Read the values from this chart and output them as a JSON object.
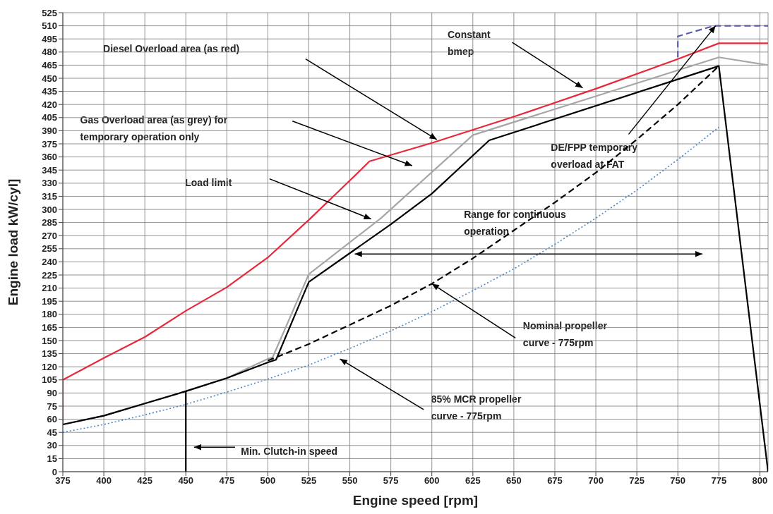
{
  "chart_data": {
    "type": "line",
    "xlabel": "Engine speed [rpm]",
    "ylabel": "Engine load kW/cyl]",
    "xlim": [
      375,
      805
    ],
    "ylim": [
      0,
      525
    ],
    "xticks": [
      375,
      400,
      425,
      450,
      475,
      500,
      525,
      550,
      575,
      600,
      625,
      650,
      675,
      700,
      725,
      750,
      775,
      800
    ],
    "yticks": [
      0,
      15,
      30,
      45,
      60,
      75,
      90,
      105,
      120,
      135,
      150,
      165,
      180,
      195,
      210,
      225,
      240,
      255,
      270,
      285,
      300,
      315,
      330,
      345,
      360,
      375,
      390,
      405,
      420,
      435,
      450,
      465,
      480,
      495,
      510,
      525
    ],
    "grid": true,
    "legend": false,
    "marker": "none",
    "series": [
      {
        "color": "#e8283a",
        "line_style": "solid",
        "x": [
          375,
          375,
          400,
          425,
          450,
          475,
          500,
          525,
          550,
          562,
          600,
          650,
          700,
          750,
          775,
          805
        ],
        "values": [
          55,
          105,
          130,
          154,
          184,
          211,
          245,
          288,
          333,
          355,
          376,
          406,
          438,
          472,
          490,
          490
        ]
      },
      {
        "color": "#a6a6a6",
        "line_style": "solid",
        "x": [
          375,
          400,
          425,
          450,
          475,
          500,
          503,
          525,
          569,
          625,
          775,
          805
        ],
        "values": [
          54,
          64,
          78,
          92,
          107,
          129,
          131,
          226,
          290,
          385,
          474,
          465
        ]
      },
      {
        "color": "#000000",
        "line_style": "solid",
        "x": [
          375,
          400,
          425,
          450,
          475,
          500,
          505,
          525,
          550,
          575,
          600,
          635,
          775,
          805
        ],
        "values": [
          54,
          64,
          78,
          92,
          107,
          125,
          128,
          217,
          250,
          283,
          318,
          379,
          464,
          0
        ]
      },
      {
        "color": "#000000",
        "line_style": "dashed",
        "x": [
          500,
          525,
          550,
          575,
          600,
          625,
          650,
          675,
          700,
          725,
          750,
          775
        ],
        "values": [
          127,
          146,
          168,
          190,
          215,
          244,
          276,
          308,
          342,
          380,
          420,
          464
        ]
      },
      {
        "color": "#4a86c8",
        "line_style": "dotted",
        "x": [
          375,
          400,
          425,
          450,
          475,
          500,
          525,
          550,
          575,
          600,
          625,
          650,
          675,
          700,
          725,
          750,
          775
        ],
        "values": [
          45,
          54,
          65,
          77,
          91,
          106,
          122,
          141,
          161,
          183,
          207,
          232,
          260,
          290,
          322,
          357,
          394
        ]
      },
      {
        "color": "#5b5ba8",
        "line_style": "dashed",
        "x": [
          750,
          750,
          772,
          805
        ],
        "values": [
          474,
          498,
          510,
          510
        ]
      },
      {
        "color": "#000000",
        "line_style": "solid",
        "x": [
          450,
          450
        ],
        "values": [
          0,
          92
        ]
      }
    ],
    "annotations": [
      "Diesel Overload area (as red)",
      "Gas Overload area (as grey) for temporary operation only",
      "Load limit",
      "Constant bmep",
      {
        "text": "DE/FPP temporary overload at FAT",
        "x": 773,
        "y": 510
      },
      "Range for continuous operation",
      {
        "text": "Nominal propeller curve - 775rpm",
        "x": 600,
        "y": 215
      },
      "85% MCR propeller curve - 775rpm",
      "Min. Clutch-in speed"
    ]
  }
}
